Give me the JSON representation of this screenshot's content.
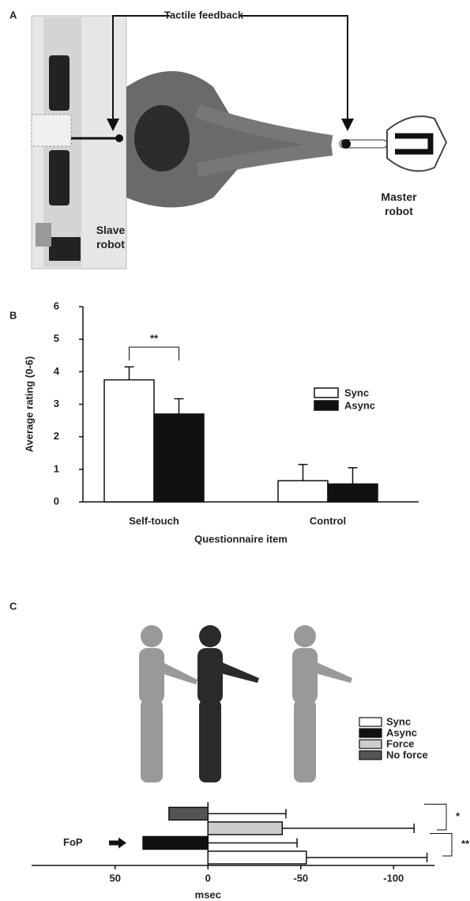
{
  "panel_a": {
    "letter": "A",
    "tactile_label": "Tactile feedback",
    "slave_label": "Slave robot",
    "master_label": "Master robot"
  },
  "chart_data": [
    {
      "type": "bar",
      "orientation": "vertical",
      "panel": "B",
      "y_label": "Average rating (0-6)",
      "x_label": "Questionnaire item",
      "categories": [
        "Self-touch",
        "Control"
      ],
      "series": [
        {
          "name": "Sync",
          "color": "#ffffff",
          "values": [
            3.75,
            0.65
          ],
          "errors": [
            0.4,
            0.5
          ]
        },
        {
          "name": "Async",
          "color": "#111111",
          "values": [
            2.7,
            0.55
          ],
          "errors": [
            0.47,
            0.5
          ]
        }
      ],
      "ylim": [
        0,
        6
      ],
      "yticks": [
        0,
        1,
        2,
        3,
        4,
        5,
        6
      ],
      "annotations": [
        "**"
      ]
    },
    {
      "type": "bar",
      "orientation": "horizontal",
      "panel": "C",
      "x_label": "msec",
      "series": [
        {
          "name": "Sync",
          "color": "#ffffff",
          "values": [
            -53
          ],
          "errors": [
            65
          ]
        },
        {
          "name": "Async",
          "color": "#111111",
          "values": [
            35
          ],
          "errors": [
            83
          ]
        },
        {
          "name": "Force",
          "color": "#cccccc",
          "values": [
            -40
          ],
          "errors": [
            71
          ]
        },
        {
          "name": "No force",
          "color": "#555555",
          "values": [
            21
          ],
          "errors": [
            63
          ]
        }
      ],
      "xlim": [
        95,
        -122
      ],
      "xticks": [
        50,
        0,
        -50,
        -100
      ],
      "annotations": [
        "*",
        "**",
        "FoP"
      ]
    }
  ]
}
